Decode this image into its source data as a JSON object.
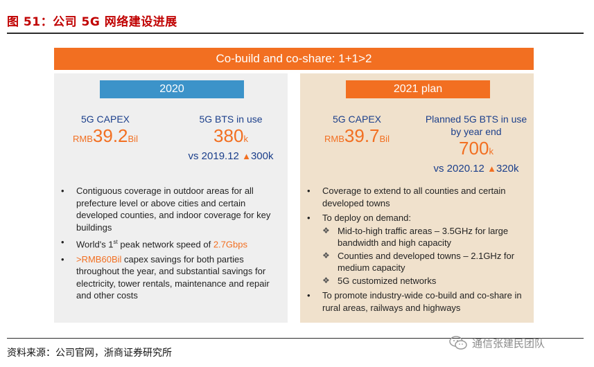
{
  "figure_title": "图 51：公司 5G 网络建设进展",
  "banner": "Co-build and co-share: 1+1>2",
  "left": {
    "year": "2020",
    "capex_label": "5G CAPEX",
    "capex_prefix": "RMB",
    "capex_value": "39.2",
    "capex_unit": "Bil",
    "bts_label": "5G BTS in use",
    "bts_value": "380",
    "bts_unit": "k",
    "bts_compare": "vs 2019.12",
    "bts_increase": "300k",
    "bullets": [
      {
        "text": "Contiguous coverage in outdoor areas for all prefecture level or above cities and certain developed counties, and indoor coverage for key buildings"
      },
      {
        "pre": "World's 1",
        "sup": "st",
        "mid": " peak network speed of ",
        "hl": "2.7Gbps"
      },
      {
        "hl": ">RMB60Bil",
        "rest": " capex savings for both parties throughout the year, and substantial savings for electricity, tower rentals, maintenance and repair and other costs"
      }
    ]
  },
  "right": {
    "year": "2021 plan",
    "capex_label": "5G CAPEX",
    "capex_prefix": "RMB",
    "capex_value": "39.7",
    "capex_unit": "Bil",
    "bts_label_1": "Planned 5G BTS in use",
    "bts_label_2": "by year end",
    "bts_value": "700",
    "bts_unit": "k",
    "bts_compare": "vs 2020.12",
    "bts_increase": "320k",
    "bullet_1": "Coverage to extend to all counties and certain developed towns",
    "bullet_2": "To deploy on demand:",
    "sub_bullets": [
      "Mid-to-high traffic areas – 3.5GHz for large bandwidth and high capacity",
      "Counties and developed towns – 2.1GHz for medium capacity",
      "5G customized networks"
    ],
    "bullet_3": "To promote industry-wide co-build and co-share in rural areas, railways and highways"
  },
  "source": "资料来源：公司官网，浙商证券研究所",
  "watermark": "通信张建民团队",
  "icons": {
    "bullet": "•",
    "sub_bullet": "❖",
    "arrow": "▲"
  },
  "colors": {
    "orange": "#f26f21",
    "blue": "#3c93c9",
    "navy": "#1b3f8b",
    "red_title": "#c00000"
  }
}
